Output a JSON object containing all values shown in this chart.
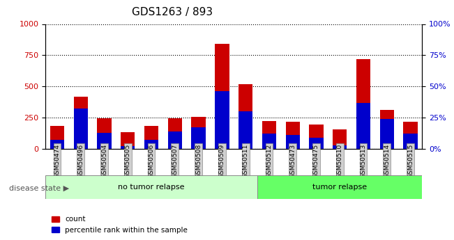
{
  "title": "GDS1263 / 893",
  "categories": [
    "GSM50474",
    "GSM50496",
    "GSM50504",
    "GSM50505",
    "GSM50506",
    "GSM50507",
    "GSM50508",
    "GSM50509",
    "GSM50511",
    "GSM50512",
    "GSM50473",
    "GSM50475",
    "GSM50510",
    "GSM50513",
    "GSM50514",
    "GSM50515"
  ],
  "count_values": [
    185,
    415,
    245,
    135,
    185,
    245,
    255,
    840,
    520,
    220,
    215,
    195,
    155,
    720,
    310,
    215
  ],
  "percentile_values": [
    7,
    32,
    13,
    2,
    7,
    14,
    17,
    46,
    30,
    12,
    11,
    9,
    3,
    37,
    24,
    12
  ],
  "groups": [
    {
      "label": "no tumor relapse",
      "start": 0,
      "end": 9,
      "color": "#ccffcc"
    },
    {
      "label": "tumor relapse",
      "start": 9,
      "end": 16,
      "color": "#66ff66"
    }
  ],
  "left_yaxis": {
    "min": 0,
    "max": 1000,
    "ticks": [
      0,
      250,
      500,
      750,
      1000
    ],
    "color": "#cc0000",
    "label": ""
  },
  "right_yaxis": {
    "min": 0,
    "max": 100,
    "ticks": [
      0,
      25,
      50,
      75,
      100
    ],
    "color": "#0000cc",
    "label": ""
  },
  "bar_color_count": "#cc0000",
  "bar_color_percentile": "#0000cc",
  "bar_width": 0.6,
  "background_color": "#ffffff",
  "plot_bg_color": "#ffffff",
  "grid_color": "#000000",
  "disease_state_label": "disease state",
  "legend_count": "count",
  "legend_percentile": "percentile rank within the sample",
  "title_fontsize": 11,
  "axis_label_fontsize": 8,
  "tick_fontsize": 8
}
